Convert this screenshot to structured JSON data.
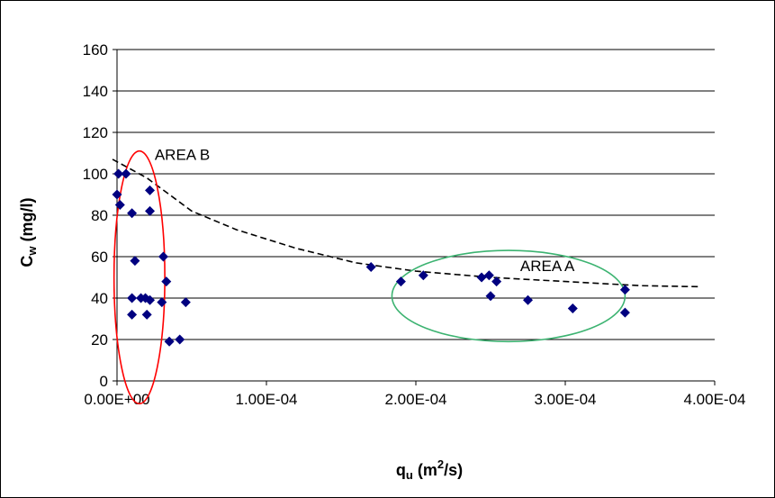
{
  "chart_data": {
    "type": "scatter",
    "xlabel_main": "q",
    "xlabel_sub": "u",
    "xlabel_unit_pre": " (m",
    "xlabel_sup": "2",
    "xlabel_unit_post": "/s)",
    "ylabel_main": "C",
    "ylabel_sub": "w",
    "ylabel_unit": " (mg/l)",
    "xlim": [
      0,
      0.0004
    ],
    "ylim": [
      0,
      160
    ],
    "xticks": [
      0,
      0.0001,
      0.0002,
      0.0003,
      0.0004
    ],
    "xtick_labels": [
      "0.00E+00",
      "1.00E-04",
      "2.00E-04",
      "3.00E-04",
      "4.00E-04"
    ],
    "yticks": [
      0,
      20,
      40,
      60,
      80,
      100,
      120,
      140,
      160
    ],
    "ytick_labels": [
      "0",
      "20",
      "40",
      "60",
      "80",
      "100",
      "120",
      "140",
      "160"
    ],
    "grid": true,
    "marker_color": "#000080",
    "points": [
      {
        "x": 1e-06,
        "y": 100
      },
      {
        "x": 6e-06,
        "y": 100
      },
      {
        "x": 0.0,
        "y": 90
      },
      {
        "x": 2e-06,
        "y": 85
      },
      {
        "x": 1e-05,
        "y": 81
      },
      {
        "x": 2.2e-05,
        "y": 82
      },
      {
        "x": 2.2e-05,
        "y": 92
      },
      {
        "x": 1.2e-05,
        "y": 58
      },
      {
        "x": 3.1e-05,
        "y": 60
      },
      {
        "x": 3.3e-05,
        "y": 48
      },
      {
        "x": 1e-05,
        "y": 40
      },
      {
        "x": 1.6e-05,
        "y": 40
      },
      {
        "x": 1.9e-05,
        "y": 40
      },
      {
        "x": 2.2e-05,
        "y": 39
      },
      {
        "x": 3e-05,
        "y": 38
      },
      {
        "x": 4.6e-05,
        "y": 38
      },
      {
        "x": 1e-05,
        "y": 32
      },
      {
        "x": 2e-05,
        "y": 32
      },
      {
        "x": 3.5e-05,
        "y": 19
      },
      {
        "x": 4.2e-05,
        "y": 20
      },
      {
        "x": 0.00017,
        "y": 55
      },
      {
        "x": 0.00019,
        "y": 48
      },
      {
        "x": 0.000205,
        "y": 51
      },
      {
        "x": 0.000244,
        "y": 50
      },
      {
        "x": 0.000249,
        "y": 51
      },
      {
        "x": 0.000254,
        "y": 48
      },
      {
        "x": 0.00025,
        "y": 41
      },
      {
        "x": 0.000275,
        "y": 39
      },
      {
        "x": 0.000305,
        "y": 35
      },
      {
        "x": 0.00034,
        "y": 44
      },
      {
        "x": 0.00034,
        "y": 33
      }
    ],
    "trendline": {
      "style": "dashed",
      "color": "#000000",
      "points": [
        {
          "x": -3e-06,
          "y": 107
        },
        {
          "x": 2e-05,
          "y": 98
        },
        {
          "x": 5e-05,
          "y": 82
        },
        {
          "x": 8e-05,
          "y": 73
        },
        {
          "x": 0.00012,
          "y": 64
        },
        {
          "x": 0.00016,
          "y": 57
        },
        {
          "x": 0.0002,
          "y": 53
        },
        {
          "x": 0.00025,
          "y": 50
        },
        {
          "x": 0.0003,
          "y": 48
        },
        {
          "x": 0.00035,
          "y": 46
        },
        {
          "x": 0.00039,
          "y": 45.5
        }
      ]
    },
    "regions": [
      {
        "label": "AREA B",
        "color": "#ff0000",
        "cx": 1.5e-05,
        "cy": 50,
        "rx": 1.7e-05,
        "ry": 61
      },
      {
        "label": "AREA A",
        "color": "#3cb371",
        "cx": 0.000262,
        "cy": 41,
        "rx": 7.8e-05,
        "ry": 22
      }
    ]
  }
}
